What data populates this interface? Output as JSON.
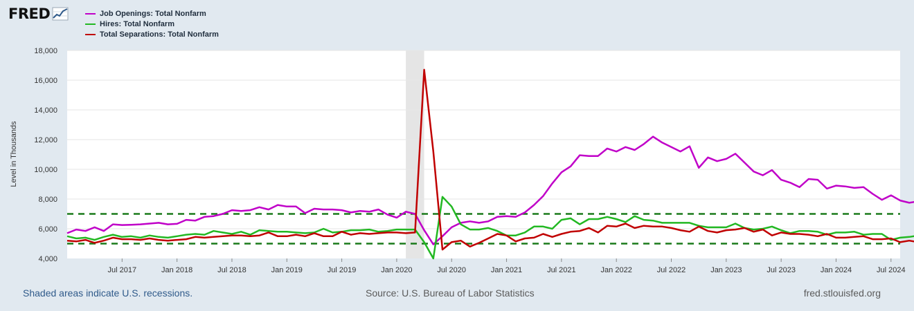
{
  "header": {
    "logo_text": "FRED"
  },
  "legend": [
    {
      "label": "Job Openings: Total Nonfarm",
      "color": "#c000c8"
    },
    {
      "label": "Hires: Total Nonfarm",
      "color": "#22b822"
    },
    {
      "label": "Total Separations: Total Nonfarm",
      "color": "#c00000"
    }
  ],
  "footer": {
    "left": "Shaded areas indicate U.S. recessions.",
    "center": "Source: U.S. Bureau of Labor Statistics",
    "right": "fred.stlouisfed.org"
  },
  "chart_data": {
    "type": "line",
    "x_start": "2017-01",
    "x_end": "2024-08",
    "ylabel": "Level in Thousands",
    "ylim": [
      4000,
      18000
    ],
    "y_ticks": [
      4000,
      6000,
      8000,
      10000,
      12000,
      14000,
      16000,
      18000
    ],
    "y_tick_labels": [
      "4,000",
      "6,000",
      "8,000",
      "10,000",
      "12,000",
      "14,000",
      "16,000",
      "18,000"
    ],
    "x_ticks": [
      "2017-07",
      "2018-01",
      "2018-07",
      "2019-01",
      "2019-07",
      "2020-01",
      "2020-07",
      "2021-01",
      "2021-07",
      "2022-01",
      "2022-07",
      "2023-01",
      "2023-07",
      "2024-01",
      "2024-07"
    ],
    "x_tick_labels": [
      "Jul 2017",
      "Jan 2018",
      "Jul 2018",
      "Jan 2019",
      "Jul 2019",
      "Jan 2020",
      "Jul 2020",
      "Jan 2021",
      "Jul 2021",
      "Jan 2022",
      "Jul 2022",
      "Jan 2023",
      "Jul 2023",
      "Jan 2024",
      "Jul 2024"
    ],
    "grid": "horizontal",
    "recessions": [
      {
        "start": "2020-02",
        "end": "2020-04"
      }
    ],
    "reference_lines": [
      {
        "y": 7000,
        "color": "#1a7a1a",
        "style": "dashed"
      },
      {
        "y": 5000,
        "color": "#1a7a1a",
        "style": "dashed"
      }
    ],
    "series": [
      {
        "name": "Job Openings: Total Nonfarm",
        "color": "#c000c8",
        "values": [
          5700,
          5950,
          5850,
          6100,
          5850,
          6300,
          6250,
          6270,
          6300,
          6350,
          6400,
          6300,
          6330,
          6600,
          6550,
          6800,
          6850,
          7000,
          7250,
          7200,
          7250,
          7450,
          7300,
          7600,
          7500,
          7500,
          7050,
          7350,
          7300,
          7300,
          7250,
          7100,
          7200,
          7150,
          7300,
          6950,
          6750,
          7150,
          7000,
          5900,
          4950,
          5500,
          6100,
          6400,
          6500,
          6400,
          6500,
          6800,
          6850,
          6800,
          7100,
          7600,
          8200,
          9050,
          9800,
          10200,
          10950,
          10900,
          10900,
          11400,
          11200,
          11500,
          11300,
          11700,
          12200,
          11800,
          11500,
          11200,
          11550,
          10100,
          10800,
          10550,
          10700,
          11050,
          10450,
          9850,
          9600,
          9950,
          9300,
          9100,
          8800,
          9350,
          9300,
          8700,
          8900,
          8850,
          8750,
          8800,
          8350,
          7950,
          8250,
          7900,
          7750,
          7850,
          7450
        ]
      },
      {
        "name": "Hires: Total Nonfarm",
        "color": "#22b822",
        "values": [
          5500,
          5350,
          5400,
          5250,
          5450,
          5600,
          5450,
          5500,
          5400,
          5550,
          5450,
          5400,
          5500,
          5600,
          5650,
          5600,
          5850,
          5750,
          5650,
          5800,
          5600,
          5900,
          5850,
          5800,
          5800,
          5750,
          5700,
          5750,
          6000,
          5750,
          5800,
          5900,
          5900,
          5950,
          5800,
          5850,
          5950,
          5950,
          5950,
          5100,
          4000,
          8150,
          7500,
          6300,
          5950,
          5950,
          6050,
          5850,
          5550,
          5550,
          5750,
          6150,
          6150,
          6000,
          6600,
          6700,
          6300,
          6650,
          6650,
          6800,
          6650,
          6450,
          6850,
          6600,
          6550,
          6400,
          6400,
          6400,
          6400,
          6200,
          6100,
          6100,
          6100,
          6350,
          6050,
          5950,
          6000,
          6150,
          5900,
          5700,
          5850,
          5850,
          5800,
          5600,
          5750,
          5750,
          5800,
          5600,
          5650,
          5650,
          5250,
          5400,
          5450,
          5550,
          5450
        ]
      },
      {
        "name": "Total Separations: Total Nonfarm",
        "color": "#c00000",
        "values": [
          5200,
          5150,
          5250,
          5050,
          5200,
          5400,
          5300,
          5300,
          5250,
          5350,
          5250,
          5200,
          5250,
          5300,
          5450,
          5400,
          5450,
          5500,
          5550,
          5550,
          5500,
          5550,
          5750,
          5500,
          5500,
          5600,
          5500,
          5700,
          5500,
          5500,
          5800,
          5600,
          5700,
          5650,
          5700,
          5750,
          5750,
          5700,
          5750,
          16700,
          11200,
          4600,
          5100,
          5200,
          4800,
          5050,
          5350,
          5650,
          5550,
          5150,
          5350,
          5400,
          5650,
          5450,
          5650,
          5800,
          5850,
          6050,
          5750,
          6200,
          6150,
          6350,
          6050,
          6200,
          6150,
          6150,
          6050,
          5900,
          5800,
          6150,
          5850,
          5750,
          5900,
          5950,
          6050,
          5800,
          5950,
          5550,
          5750,
          5650,
          5650,
          5600,
          5500,
          5650,
          5400,
          5400,
          5450,
          5500,
          5300,
          5300,
          5350,
          5100,
          5200,
          5100,
          5150
        ]
      }
    ]
  }
}
